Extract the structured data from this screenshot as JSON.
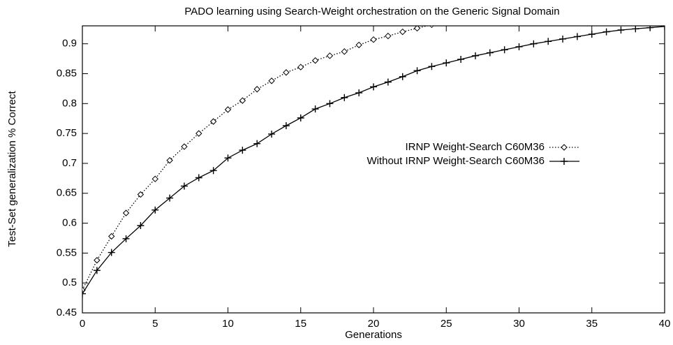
{
  "chart_data": {
    "type": "line",
    "title": "PADO learning using Search-Weight orchestration on the Generic Signal Domain",
    "xlabel": "Generations",
    "ylabel": "Test-Set generalization % Correct",
    "x": [
      0,
      1,
      2,
      3,
      4,
      5,
      6,
      7,
      8,
      9,
      10,
      11,
      12,
      13,
      14,
      15,
      16,
      17,
      18,
      19,
      20,
      21,
      22,
      23,
      24,
      25,
      26,
      27,
      28,
      29,
      30,
      31,
      32,
      33,
      34,
      35,
      36,
      37,
      38,
      39,
      40
    ],
    "series": [
      {
        "name": "IRNP Weight-Search C60M36",
        "color": "#000000",
        "marker": "diamond",
        "dash": "dotted",
        "values": [
          0.488,
          0.538,
          0.578,
          0.617,
          0.648,
          0.674,
          0.705,
          0.728,
          0.75,
          0.77,
          0.79,
          0.805,
          0.824,
          0.838,
          0.852,
          0.861,
          0.872,
          0.88,
          0.887,
          0.898,
          0.907,
          0.913,
          0.92,
          0.926,
          0.932,
          null,
          null,
          null,
          null,
          null,
          null,
          null,
          null,
          null,
          null,
          null,
          null,
          null,
          null,
          null,
          null
        ]
      },
      {
        "name": "Without IRNP Weight-Search C60M36",
        "color": "#000000",
        "marker": "plus",
        "dash": "solid",
        "values": [
          0.482,
          0.521,
          0.551,
          0.574,
          0.596,
          0.622,
          0.642,
          0.662,
          0.676,
          0.688,
          0.709,
          0.722,
          0.733,
          0.749,
          0.763,
          0.776,
          0.791,
          0.8,
          0.81,
          0.818,
          0.828,
          0.836,
          0.845,
          0.855,
          0.862,
          0.868,
          0.874,
          0.88,
          0.885,
          0.89,
          0.895,
          0.9,
          0.904,
          0.908,
          0.912,
          0.916,
          0.92,
          0.923,
          0.925,
          0.927,
          0.929
        ]
      }
    ],
    "xlim": [
      0,
      40
    ],
    "xticks": [
      0,
      5,
      10,
      15,
      20,
      25,
      30,
      35,
      40
    ],
    "ylim": [
      0.45,
      0.93
    ],
    "yticks": [
      0.45,
      0.5,
      0.55,
      0.6,
      0.65,
      0.7,
      0.75,
      0.8,
      0.85,
      0.9
    ],
    "grid": false,
    "legend": "center-right"
  }
}
